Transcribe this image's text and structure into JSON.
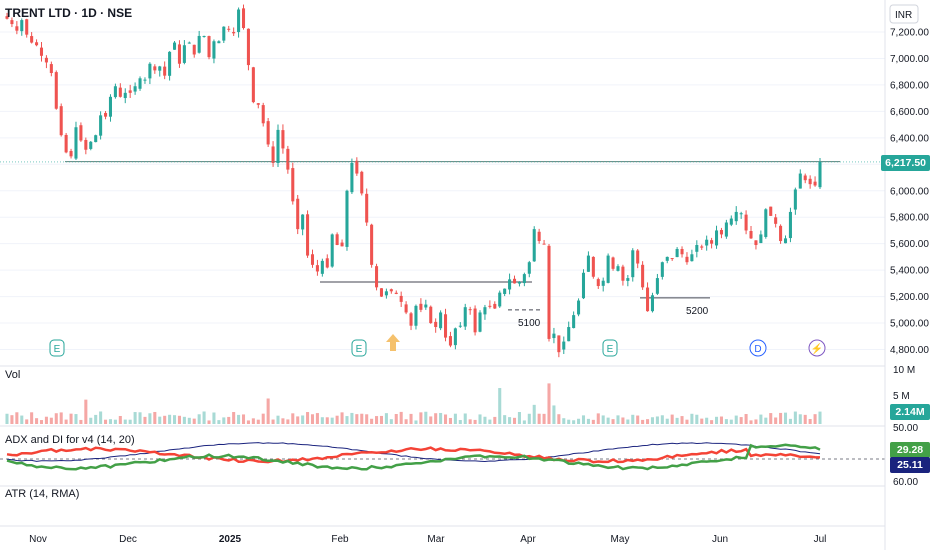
{
  "header": {
    "title": "TRENT LTD · 1D · NSE",
    "currency": "INR"
  },
  "colors": {
    "up": "#26a69a",
    "down": "#ef5350",
    "vol_up": "#a8dad5",
    "vol_down": "#f5a7a5",
    "adx": "#1a237e",
    "di_plus": "#43a047",
    "di_minus": "#f44336",
    "grid": "#f0f3fa",
    "level": "#787b86",
    "marker": "#f5c16c"
  },
  "chart_data": {
    "type": "candlestick",
    "yticks": [
      7200,
      7000,
      6800,
      6600,
      6400,
      6200,
      6000,
      5800,
      5600,
      5400,
      5200,
      5000,
      4800
    ],
    "ylim": [
      4740,
      7450
    ],
    "xlabels": [
      "Nov",
      "Dec",
      "2025",
      "Feb",
      "Mar",
      "Apr",
      "May",
      "Jun",
      "Jul"
    ],
    "last_price": "6,217.50",
    "levels": [
      {
        "value": 6220,
        "label": ""
      },
      {
        "value": 5310,
        "label": ""
      },
      {
        "value": 5100,
        "label": "5100"
      },
      {
        "value": 5190,
        "label": "5200"
      }
    ],
    "event_markers": [
      "E",
      "E",
      "E",
      "D",
      "⚡"
    ],
    "close": [
      7300,
      7260,
      7210,
      7290,
      7180,
      7120,
      7100,
      7020,
      6970,
      6890,
      6620,
      6420,
      6290,
      6260,
      6480,
      6380,
      6310,
      6370,
      6420,
      6570,
      6560,
      6710,
      6790,
      6710,
      6740,
      6740,
      6790,
      6850,
      6840,
      6960,
      6910,
      6940,
      6870,
      7050,
      7120,
      6960,
      7100,
      7120,
      7030,
      7170,
      7170,
      7010,
      7130,
      7130,
      7240,
      7220,
      7190,
      7370,
      7230,
      6950,
      6670,
      6650,
      6510,
      6350,
      6210,
      6460,
      6320,
      6160,
      5920,
      5710,
      5820,
      5510,
      5440,
      5390,
      5470,
      5420,
      5670,
      5590,
      5580,
      6000,
      6210,
      6130,
      5980,
      5760,
      5440,
      5270,
      5200,
      5240,
      5240,
      5220,
      5160,
      5080,
      4980,
      5130,
      5100,
      5140,
      5000,
      4970,
      5080,
      4890,
      4830,
      4960,
      4980,
      5120,
      5100,
      4930,
      5080,
      5120,
      5130,
      5110,
      5230,
      5260,
      5330,
      5300,
      5310,
      5370,
      5460,
      5710,
      5620,
      5600,
      4880,
      4920,
      4780,
      4860,
      4970,
      5060,
      5170,
      5380,
      5510,
      5350,
      5280,
      5320,
      5510,
      5410,
      5430,
      5320,
      5340,
      5550,
      5450,
      5270,
      5090,
      5210,
      5340,
      5460,
      5500,
      5490,
      5560,
      5520,
      5460,
      5520,
      5590,
      5570,
      5630,
      5600,
      5700,
      5670,
      5760,
      5790,
      5840,
      5830,
      5700,
      5640,
      5590,
      5670,
      5860,
      5810,
      5750,
      5620,
      5640,
      5840,
      6010,
      6130,
      6080,
      6050,
      6040,
      6217.5
    ],
    "volume_scale": "10M",
    "volume_ticks": [
      "10 M",
      "5 M"
    ],
    "volume_last": "2.14M",
    "indicator_adx": "ADX and DI for v4 (14, 20)",
    "adx_ticks": [
      "50.00",
      "60.00"
    ],
    "di_plus_last": "29.28",
    "adx_last": "25.11",
    "indicator_atr": "ATR (14, RMA)"
  }
}
